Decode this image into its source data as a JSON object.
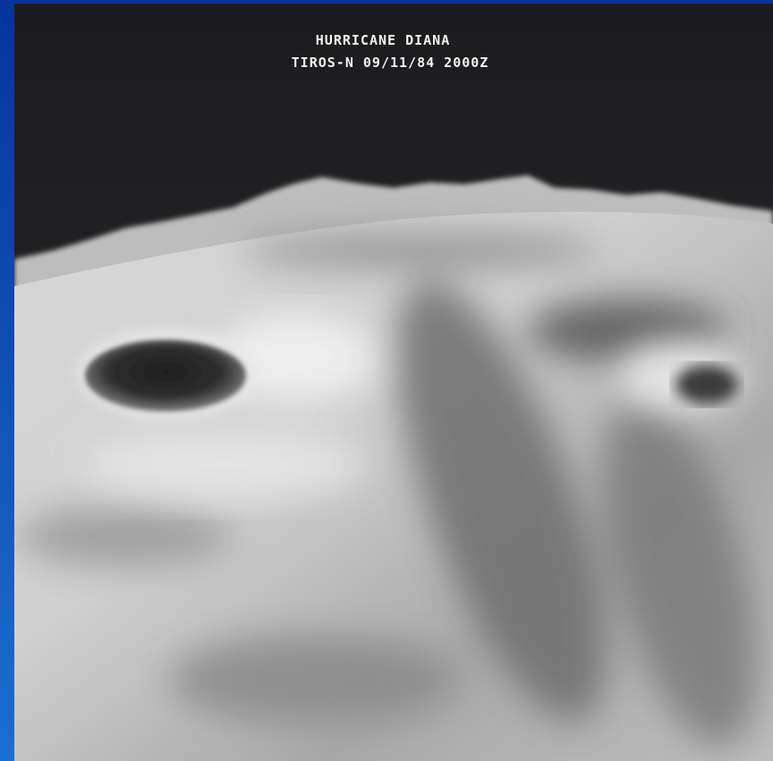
{
  "image": {
    "title": "HURRICANE DIANA",
    "caption": "TIROS-N 09/11/84 2000Z"
  }
}
